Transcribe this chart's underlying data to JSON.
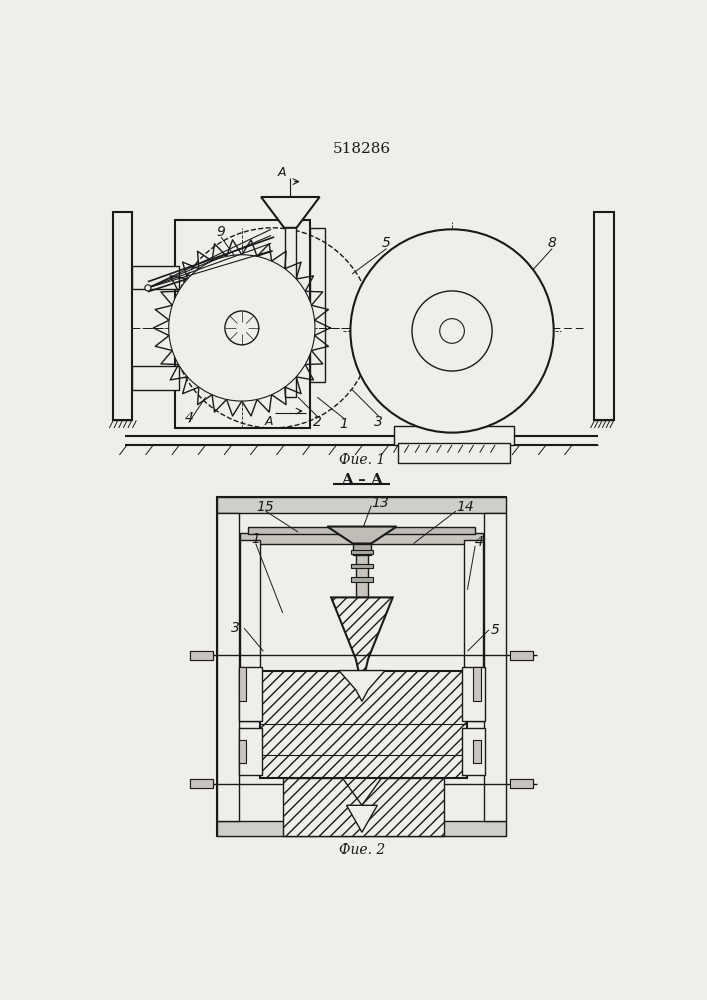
{
  "title": "518286",
  "fig1_caption": "Фие. 1",
  "fig2_caption": "Фие. 2",
  "section_label": "A – A",
  "bg_color": "#f0eeea",
  "lc": "#1a1a1a"
}
